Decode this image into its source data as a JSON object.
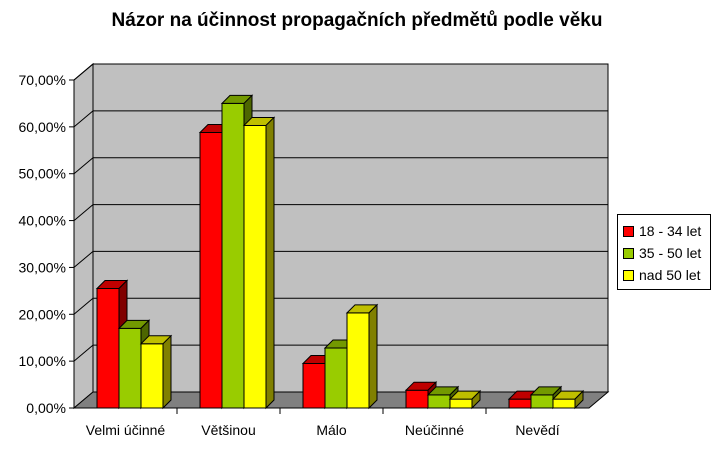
{
  "chart_data": {
    "type": "bar",
    "title": "Názor na účinnost propagačních předmětů podle věku",
    "categories": [
      "Velmi účinné",
      "Většinou",
      "Málo",
      "Neúčinné",
      "Nevědí"
    ],
    "series": [
      {
        "name": "18 - 34 let",
        "color": "#ff0000",
        "values": [
          25.5,
          58.8,
          9.5,
          3.8,
          1.9
        ]
      },
      {
        "name": "35 - 50 let",
        "color": "#99cc00",
        "values": [
          17.0,
          65.0,
          12.8,
          2.8,
          2.8
        ]
      },
      {
        "name": "nad 50 let",
        "color": "#ffff00",
        "values": [
          13.7,
          60.3,
          20.3,
          1.9,
          1.9
        ]
      }
    ],
    "ylim": [
      0,
      70
    ],
    "yticks": [
      "0,00%",
      "10,00%",
      "20,00%",
      "30,00%",
      "40,00%",
      "50,00%",
      "60,00%",
      "70,00%"
    ],
    "grid": true,
    "legend_position": "right",
    "style": "3d-clustered-column",
    "wall_color": "#c0c0c0",
    "floor_color": "#808080"
  }
}
